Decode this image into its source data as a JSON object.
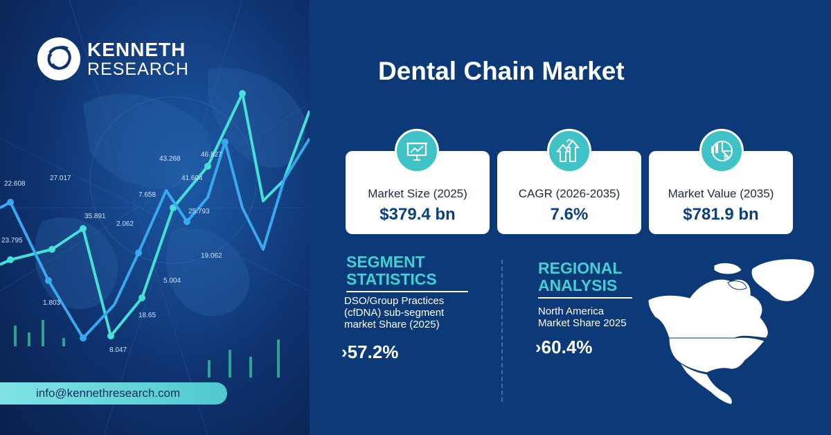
{
  "brand": {
    "line1": "KENNETH",
    "line2": "RESEARCH"
  },
  "title": "Dental Chain Market",
  "contact": {
    "email": "info@kennethresearch.com"
  },
  "chart_numbers": [
    "22.608",
    "27.017",
    "23.795",
    "35.891",
    "2.062",
    "1.803",
    "8.047",
    "18.65",
    "43.268",
    "41.604",
    "7.658",
    "46.827",
    "25.793",
    "19.062",
    "5.004"
  ],
  "cards": [
    {
      "icon": "presentation-chart-icon",
      "label": "Market Size (2025)",
      "value": "$379.4 bn"
    },
    {
      "icon": "growth-arrows-icon",
      "label": "CAGR (2026-2035)",
      "value": "7.6%"
    },
    {
      "icon": "pie-chart-dollar-icon",
      "label": "Market Value (2035)",
      "value": "$781.9 bn"
    }
  ],
  "segment": {
    "heading_line1": "SEGMENT",
    "heading_line2": "STATISTICS",
    "desc_line1": "DSO/Group Practices",
    "desc_line2": "(cfDNA) sub-segment",
    "desc_line3": "market Share (2025)",
    "stat": "57.2%"
  },
  "regional": {
    "heading_line1": "REGIONAL",
    "heading_line2": "ANALYSIS",
    "desc_line1": "North America",
    "desc_line2": "Market Share 2025",
    "stat": "60.4%"
  },
  "colors": {
    "accent": "#44d0d3",
    "background": "#0c3a78",
    "card": "#ffffff",
    "value": "#0c3f80"
  }
}
